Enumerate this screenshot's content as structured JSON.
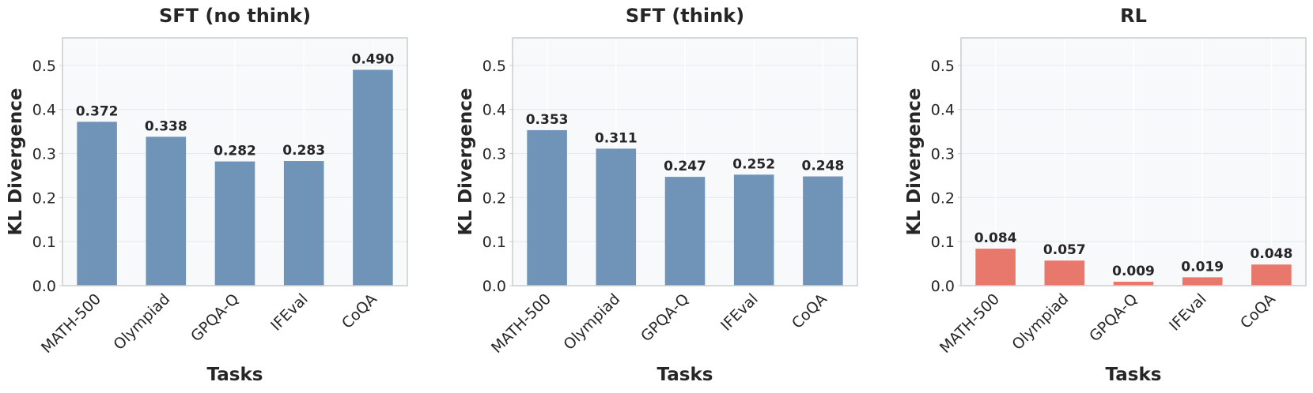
{
  "chart_data": [
    {
      "type": "bar",
      "title": "SFT (no think)",
      "xlabel": "Tasks",
      "ylabel": "KL Divergence",
      "categories": [
        "MATH-500",
        "Olympiad",
        "GPQA-Q",
        "IFEval",
        "CoQA"
      ],
      "values": [
        0.372,
        0.338,
        0.282,
        0.283,
        0.49
      ],
      "value_labels": [
        "0.372",
        "0.338",
        "0.282",
        "0.283",
        "0.490"
      ],
      "color": "#6f94b8",
      "ylim": [
        0,
        0.5625
      ],
      "yticks": [
        {
          "value": 0,
          "label": "0.0"
        },
        {
          "value": 0.1,
          "label": "0.1"
        },
        {
          "value": 0.2,
          "label": "0.2"
        },
        {
          "value": 0.3,
          "label": "0.3"
        },
        {
          "value": 0.4,
          "label": "0.4"
        },
        {
          "value": 0.5,
          "label": "0.5"
        }
      ],
      "grid": true
    },
    {
      "type": "bar",
      "title": "SFT (think)",
      "xlabel": "Tasks",
      "ylabel": "KL Divergence",
      "categories": [
        "MATH-500",
        "Olympiad",
        "GPQA-Q",
        "IFEval",
        "CoQA"
      ],
      "values": [
        0.353,
        0.311,
        0.247,
        0.252,
        0.248
      ],
      "value_labels": [
        "0.353",
        "0.311",
        "0.247",
        "0.252",
        "0.248"
      ],
      "color": "#6f94b8",
      "ylim": [
        0,
        0.5625
      ],
      "yticks": [
        {
          "value": 0,
          "label": "0.0"
        },
        {
          "value": 0.1,
          "label": "0.1"
        },
        {
          "value": 0.2,
          "label": "0.2"
        },
        {
          "value": 0.3,
          "label": "0.3"
        },
        {
          "value": 0.4,
          "label": "0.4"
        },
        {
          "value": 0.5,
          "label": "0.5"
        }
      ],
      "grid": true
    },
    {
      "type": "bar",
      "title": "RL",
      "xlabel": "Tasks",
      "ylabel": "KL Divergence",
      "categories": [
        "MATH-500",
        "Olympiad",
        "GPQA-Q",
        "IFEval",
        "CoQA"
      ],
      "values": [
        0.084,
        0.057,
        0.009,
        0.019,
        0.048
      ],
      "value_labels": [
        "0.084",
        "0.057",
        "0.009",
        "0.019",
        "0.048"
      ],
      "color": "#e8786c",
      "ylim": [
        0,
        0.5625
      ],
      "yticks": [
        {
          "value": 0,
          "label": "0.0"
        },
        {
          "value": 0.1,
          "label": "0.1"
        },
        {
          "value": 0.2,
          "label": "0.2"
        },
        {
          "value": 0.3,
          "label": "0.3"
        },
        {
          "value": 0.4,
          "label": "0.4"
        },
        {
          "value": 0.5,
          "label": "0.5"
        }
      ],
      "grid": true
    }
  ]
}
